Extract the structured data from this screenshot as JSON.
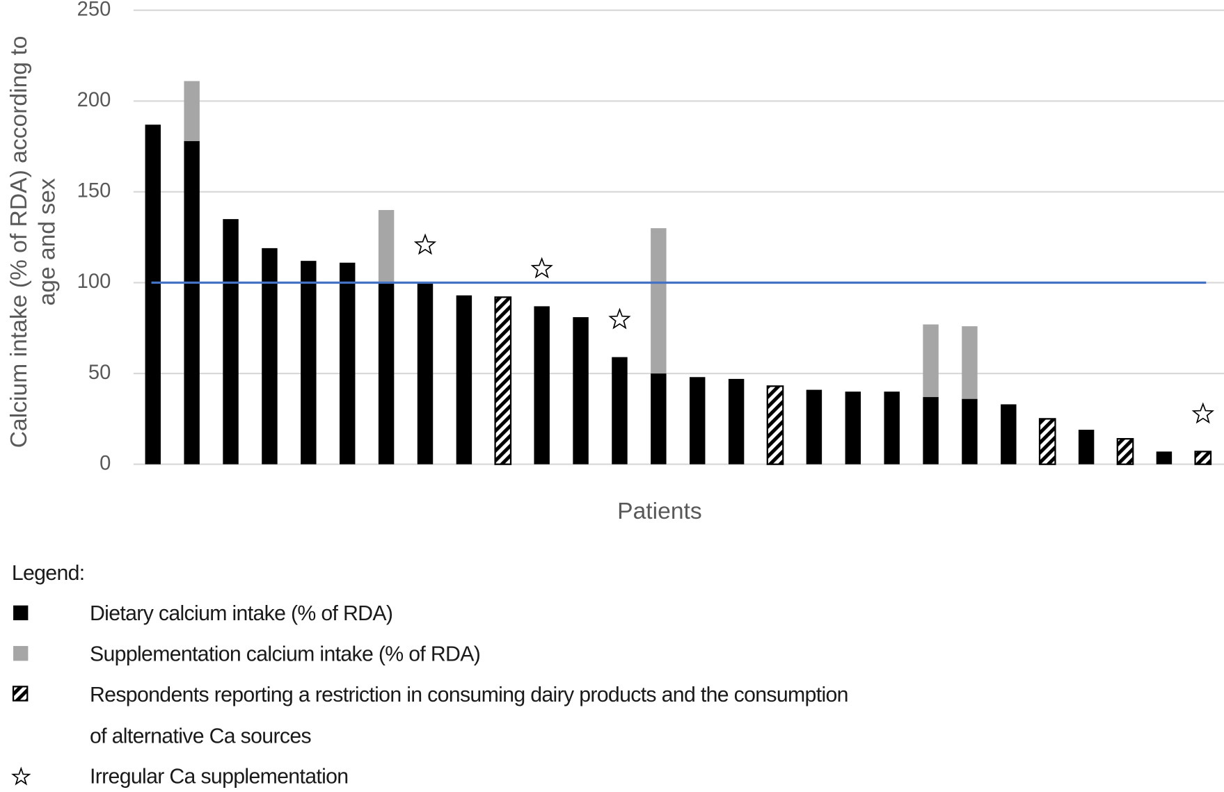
{
  "chart_data": {
    "type": "bar",
    "stacked": true,
    "ylabel": [
      "Calcium intake (% of RDA)  according to",
      "age and sex"
    ],
    "xlabel": "Patients",
    "categories": [
      null,
      null,
      null,
      null,
      null,
      null,
      null,
      null,
      null,
      null,
      null,
      null,
      null,
      null,
      null,
      null,
      null,
      null,
      null,
      null,
      null,
      null,
      null,
      null,
      null,
      null,
      null,
      null
    ],
    "series": [
      {
        "name": "Dietary calcium intake (% of RDA)",
        "color": "#000000",
        "values": [
          187,
          178,
          135,
          119,
          112,
          111,
          100,
          100,
          93,
          92,
          87,
          81,
          59,
          50,
          48,
          47,
          43,
          41,
          40,
          40,
          37,
          36,
          33,
          25,
          19,
          14,
          7,
          7
        ]
      },
      {
        "name": "Supplementation calcium intake (% of RDA)",
        "color": "#a6a6a6",
        "values": [
          0,
          33,
          0,
          0,
          0,
          0,
          40,
          0,
          0,
          0,
          0,
          0,
          0,
          80,
          0,
          0,
          0,
          0,
          0,
          0,
          40,
          40,
          0,
          0,
          0,
          0,
          0,
          0
        ]
      }
    ],
    "restricted_dairy": [
      false,
      false,
      false,
      false,
      false,
      false,
      false,
      false,
      false,
      true,
      false,
      false,
      false,
      false,
      false,
      false,
      true,
      false,
      false,
      false,
      false,
      false,
      false,
      true,
      false,
      true,
      false,
      true
    ],
    "irregular_supplementation": [
      false,
      false,
      false,
      false,
      false,
      false,
      false,
      true,
      false,
      false,
      true,
      false,
      true,
      false,
      false,
      false,
      false,
      false,
      false,
      false,
      false,
      false,
      false,
      false,
      false,
      false,
      false,
      true
    ],
    "reference_line": {
      "value": 100,
      "color": "#4472c4"
    },
    "ylim": [
      0,
      250
    ],
    "yticks": [
      0,
      50,
      100,
      150,
      200,
      250
    ],
    "grid": true,
    "legend": {
      "heading": "Legend:",
      "restricted_label": [
        "Respondents reporting a restriction  in consuming dairy products and the consumption",
        "of alternative  Ca sources"
      ],
      "irregular_label": "Irregular Ca supplementation"
    }
  }
}
